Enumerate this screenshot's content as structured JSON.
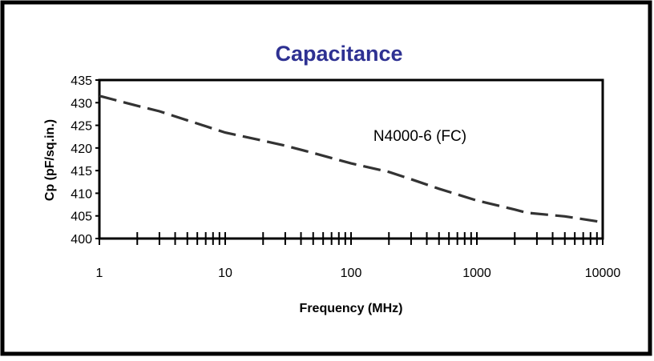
{
  "chart_data": {
    "type": "line",
    "title": "Capacitance",
    "xlabel": "Frequency (MHz)",
    "ylabel": "Cp (pF/sq.in.)",
    "x_scale": "log",
    "xlim": [
      1,
      10000
    ],
    "ylim": [
      400,
      435
    ],
    "x_ticks": [
      "1",
      "10",
      "100",
      "1000",
      "10000"
    ],
    "y_ticks": [
      "400",
      "405",
      "410",
      "415",
      "420",
      "425",
      "430",
      "435"
    ],
    "grid": false,
    "legend": "none",
    "colors": {
      "title": "#2E3192",
      "line": "#333333",
      "text": "#000000"
    },
    "series": [
      {
        "name": "N4000-6 (FC)",
        "line_style": "dashed",
        "x": [
          1,
          2,
          3,
          5,
          10,
          20,
          30,
          50,
          100,
          200,
          300,
          500,
          1000,
          2000,
          2500,
          5000,
          10000
        ],
        "y": [
          431.5,
          429.3,
          428.1,
          426.1,
          423.4,
          421.6,
          420.5,
          418.9,
          416.6,
          414.7,
          413.1,
          411.0,
          408.4,
          406.4,
          405.7,
          404.9,
          403.6
        ]
      }
    ]
  }
}
